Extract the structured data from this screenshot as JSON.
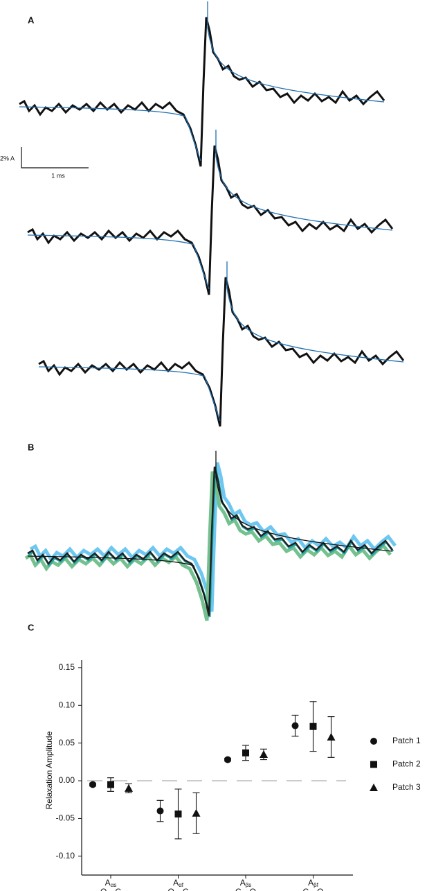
{
  "panels": {
    "a": {
      "label": "A",
      "scale_y": "2% A",
      "scale_x": "1 ms"
    },
    "b": {
      "label": "B"
    },
    "c": {
      "label": "C"
    }
  },
  "chart_data": {
    "type": "scatter",
    "y_label": "Relaxation Amplitude",
    "category_labels": [
      {
        "main": "A",
        "sub": "αs",
        "transition": "O→C"
      },
      {
        "main": "A",
        "sub": "αf",
        "transition": "O→C"
      },
      {
        "main": "A",
        "sub": "βs",
        "transition": "C→O"
      },
      {
        "main": "A",
        "sub": "βf",
        "transition": "C→O"
      }
    ],
    "series": [
      {
        "name": "Patch 1",
        "marker": "circle",
        "color": "#111111",
        "values": [
          -0.005,
          -0.04,
          0.028,
          0.073
        ],
        "errors": [
          0.002,
          0.014,
          0.002,
          0.014
        ]
      },
      {
        "name": "Patch 2",
        "marker": "square",
        "color": "#111111",
        "values": [
          -0.005,
          -0.044,
          0.037,
          0.072
        ],
        "errors": [
          0.009,
          0.033,
          0.01,
          0.033
        ]
      },
      {
        "name": "Patch 3",
        "marker": "triangle",
        "color": "#111111",
        "values": [
          -0.01,
          -0.043,
          0.035,
          0.058
        ],
        "errors": [
          0.006,
          0.027,
          0.007,
          0.027
        ]
      }
    ],
    "ylim": [
      -0.125,
      0.16
    ],
    "yticks": [
      {
        "value": -0.1,
        "label": "-0.10"
      },
      -0.05,
      {
        "value": 0,
        "label": "0.00"
      },
      0.05,
      {
        "value": 0.1,
        "label": "0.10"
      },
      0.15
    ],
    "zero_line": true
  }
}
